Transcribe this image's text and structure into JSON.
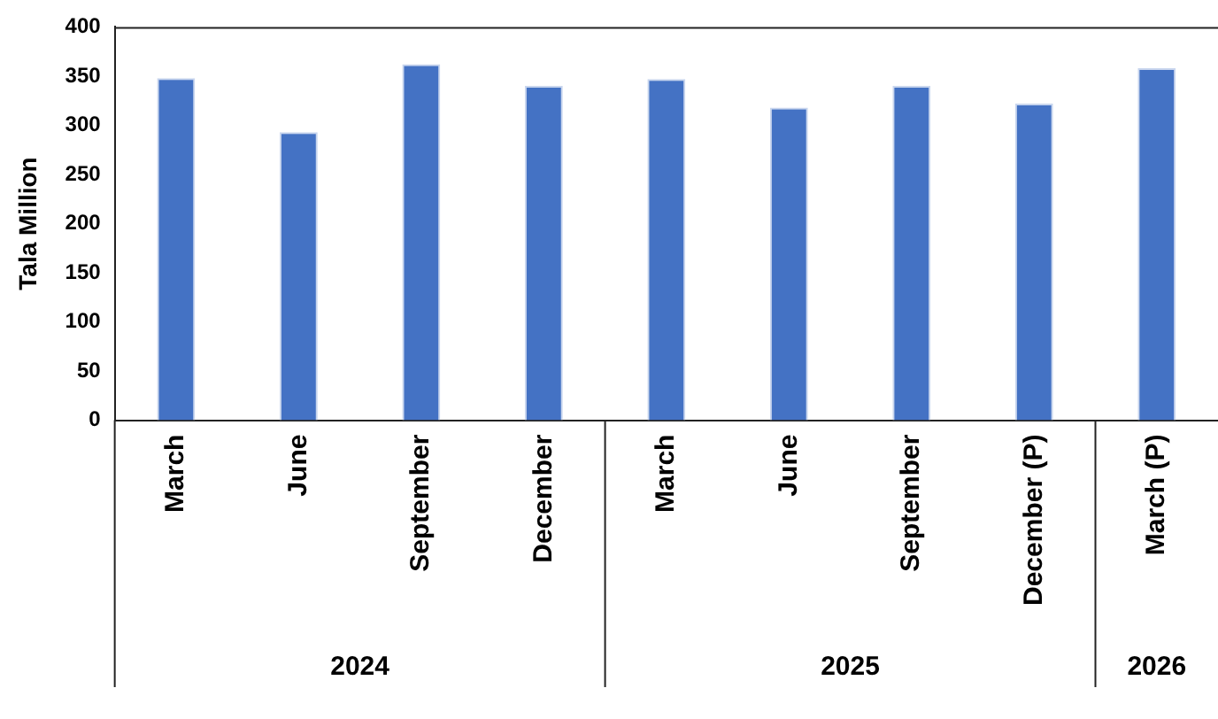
{
  "chart_data": {
    "type": "bar",
    "ylabel": "Tala Million",
    "categories": [
      "March",
      "June",
      "September",
      "December",
      "March",
      "June",
      "September",
      "December (P)",
      "March (P)"
    ],
    "values": [
      348,
      293,
      362,
      340,
      347,
      318,
      340,
      322,
      358
    ],
    "color": "#4472c4",
    "ylim": [
      0,
      400
    ],
    "yticks": [
      0,
      50,
      100,
      150,
      200,
      250,
      300,
      350,
      400
    ],
    "grid": false,
    "legend": false,
    "annotations": [
      "2024",
      "2025",
      "2026"
    ]
  }
}
